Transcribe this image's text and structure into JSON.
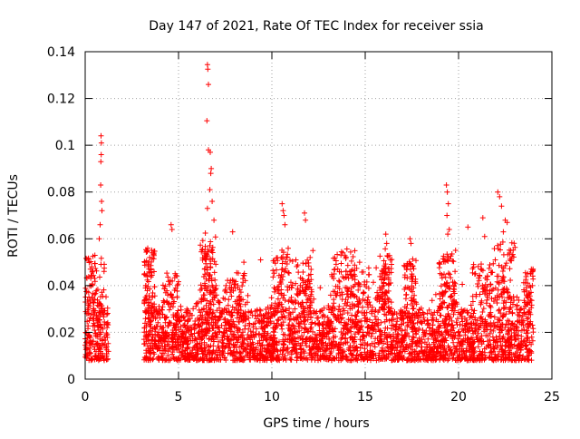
{
  "chart_data": {
    "type": "scatter",
    "title": "Day 147 of 2021, Rate Of TEC Index for receiver ssia",
    "xlabel": "GPS time / hours",
    "ylabel": "ROTI / TECUs",
    "xlim": [
      0,
      25
    ],
    "ylim": [
      0,
      0.14
    ],
    "x_ticks": [
      0,
      5,
      10,
      15,
      20,
      25
    ],
    "y_ticks": [
      0,
      0.02,
      0.04,
      0.06,
      0.08,
      0.1,
      0.12,
      0.14
    ],
    "x_tick_labels": [
      "0",
      "5",
      "10",
      "15",
      "20",
      "25"
    ],
    "y_tick_labels": [
      "0",
      "0.02",
      "0.04",
      "0.06",
      "0.08",
      "0.1",
      "0.12",
      "0.14"
    ],
    "grid": true,
    "marker": "+",
    "color": "#ff0000",
    "gaps_hours": [
      [
        1.25,
        3.15
      ],
      [
        24.0,
        25.0
      ]
    ],
    "bulk_band": {
      "typical_low": 0.008,
      "typical_high": 0.03
    },
    "notable_points": [
      {
        "x": 0.85,
        "y": 0.104
      },
      {
        "x": 0.87,
        "y": 0.101
      },
      {
        "x": 0.86,
        "y": 0.096
      },
      {
        "x": 0.84,
        "y": 0.093
      },
      {
        "x": 0.83,
        "y": 0.083
      },
      {
        "x": 0.88,
        "y": 0.076
      },
      {
        "x": 0.9,
        "y": 0.072
      },
      {
        "x": 0.8,
        "y": 0.066
      },
      {
        "x": 0.75,
        "y": 0.06
      },
      {
        "x": 6.55,
        "y": 0.1345
      },
      {
        "x": 6.57,
        "y": 0.1325
      },
      {
        "x": 6.6,
        "y": 0.126
      },
      {
        "x": 6.52,
        "y": 0.1105
      },
      {
        "x": 6.6,
        "y": 0.098
      },
      {
        "x": 6.7,
        "y": 0.097
      },
      {
        "x": 6.75,
        "y": 0.09
      },
      {
        "x": 6.73,
        "y": 0.088
      },
      {
        "x": 6.68,
        "y": 0.081
      },
      {
        "x": 6.8,
        "y": 0.076
      },
      {
        "x": 6.55,
        "y": 0.073
      },
      {
        "x": 6.9,
        "y": 0.068
      },
      {
        "x": 4.6,
        "y": 0.066
      },
      {
        "x": 4.65,
        "y": 0.064
      },
      {
        "x": 7.9,
        "y": 0.063
      },
      {
        "x": 10.55,
        "y": 0.075
      },
      {
        "x": 10.6,
        "y": 0.072
      },
      {
        "x": 10.65,
        "y": 0.07
      },
      {
        "x": 10.7,
        "y": 0.066
      },
      {
        "x": 11.75,
        "y": 0.071
      },
      {
        "x": 11.8,
        "y": 0.068
      },
      {
        "x": 3.35,
        "y": 0.056
      },
      {
        "x": 3.3,
        "y": 0.055
      },
      {
        "x": 16.1,
        "y": 0.062
      },
      {
        "x": 16.15,
        "y": 0.058
      },
      {
        "x": 17.4,
        "y": 0.06
      },
      {
        "x": 17.45,
        "y": 0.058
      },
      {
        "x": 19.35,
        "y": 0.083
      },
      {
        "x": 19.4,
        "y": 0.08
      },
      {
        "x": 19.45,
        "y": 0.075
      },
      {
        "x": 19.38,
        "y": 0.07
      },
      {
        "x": 19.5,
        "y": 0.064
      },
      {
        "x": 19.42,
        "y": 0.062
      },
      {
        "x": 20.5,
        "y": 0.065
      },
      {
        "x": 21.3,
        "y": 0.069
      },
      {
        "x": 21.4,
        "y": 0.061
      },
      {
        "x": 22.1,
        "y": 0.08
      },
      {
        "x": 22.2,
        "y": 0.078
      },
      {
        "x": 22.3,
        "y": 0.074
      },
      {
        "x": 22.5,
        "y": 0.068
      },
      {
        "x": 22.6,
        "y": 0.067
      },
      {
        "x": 22.4,
        "y": 0.063
      },
      {
        "x": 23.9,
        "y": 0.047
      },
      {
        "x": 23.85,
        "y": 0.045
      },
      {
        "x": 23.95,
        "y": 0.04
      },
      {
        "x": 13.7,
        "y": 0.053
      },
      {
        "x": 13.8,
        "y": 0.054
      },
      {
        "x": 14.7,
        "y": 0.05
      },
      {
        "x": 12.2,
        "y": 0.055
      },
      {
        "x": 9.4,
        "y": 0.051
      },
      {
        "x": 8.5,
        "y": 0.05
      }
    ],
    "activity_bumps": [
      {
        "center": 0.5,
        "width": 0.5,
        "amp": 0.018
      },
      {
        "center": 3.4,
        "width": 0.3,
        "amp": 0.02
      },
      {
        "center": 4.6,
        "width": 0.4,
        "amp": 0.012
      },
      {
        "center": 6.6,
        "width": 0.4,
        "amp": 0.025
      },
      {
        "center": 8.0,
        "width": 0.6,
        "amp": 0.012
      },
      {
        "center": 10.6,
        "width": 0.5,
        "amp": 0.02
      },
      {
        "center": 11.7,
        "width": 0.4,
        "amp": 0.018
      },
      {
        "center": 13.8,
        "width": 0.6,
        "amp": 0.02
      },
      {
        "center": 15.2,
        "width": 0.8,
        "amp": 0.015
      },
      {
        "center": 16.1,
        "width": 0.3,
        "amp": 0.018
      },
      {
        "center": 17.4,
        "width": 0.3,
        "amp": 0.017
      },
      {
        "center": 19.4,
        "width": 0.4,
        "amp": 0.02
      },
      {
        "center": 21.3,
        "width": 0.5,
        "amp": 0.015
      },
      {
        "center": 22.5,
        "width": 0.6,
        "amp": 0.022
      },
      {
        "center": 23.8,
        "width": 0.3,
        "amp": 0.014
      }
    ]
  }
}
